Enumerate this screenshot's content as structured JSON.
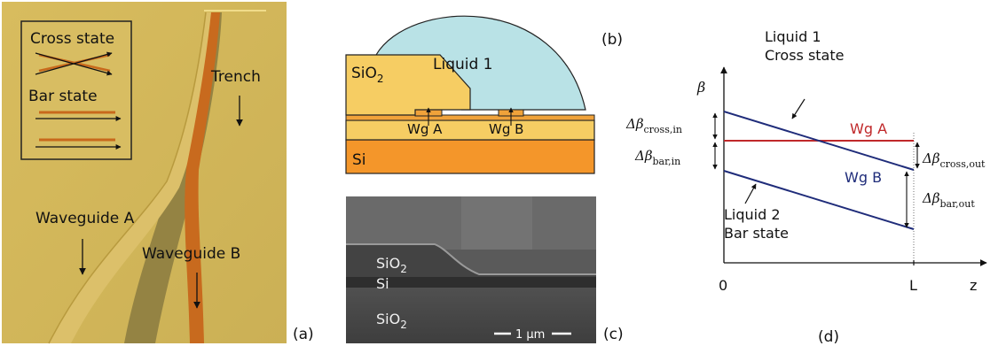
{
  "panel_a": {
    "label": "(a)",
    "inset": {
      "cross_label": "Cross state",
      "bar_label": "Bar state"
    },
    "trench_label": "Trench",
    "waveguide_a_label": "Waveguide A",
    "waveguide_b_label": "Waveguide B",
    "colors": {
      "background": "#d4b85a",
      "waveguide_a": "#cfae4e",
      "waveguide_b": "#c8691c",
      "trench": "#8c7a3a"
    }
  },
  "panel_b": {
    "label": "(b)",
    "liquid_label": "Liquid 1",
    "sio2_label": "SiO",
    "sio2_sub": "2",
    "wg_a_label": "Wg A",
    "wg_b_label": "Wg B",
    "si_label": "Si",
    "colors": {
      "liquid": "#b9e2e6",
      "sio2": "#f6cd63",
      "si": "#f4962a",
      "core": "#f0a23a"
    }
  },
  "panel_c": {
    "label": "(c)",
    "sio2_top_label": "SiO",
    "sio2_top_sub": "2",
    "si_label": "Si",
    "sio2_bottom_label": "SiO",
    "sio2_bottom_sub": "2",
    "scalebar_label": "1 μm"
  },
  "panel_d": {
    "label": "(d)",
    "y_axis_label": "β",
    "x_axis_label": "z",
    "x_tick_0": "0",
    "x_tick_L": "L",
    "liquid1_line1": "Liquid 1",
    "liquid1_line2": "Cross state",
    "liquid2_line1": "Liquid 2",
    "liquid2_line2": "Bar state",
    "wg_a_label": "Wg A",
    "wg_b_label": "Wg B",
    "delta_cross_in": {
      "base": "Δβ",
      "sub": "cross,in"
    },
    "delta_bar_in": {
      "base": "Δβ",
      "sub": "bar,in"
    },
    "delta_cross_out": {
      "base": "Δβ",
      "sub": "cross,out"
    },
    "delta_bar_out": {
      "base": "Δβ",
      "sub": "bar,out"
    },
    "colors": {
      "wg_a": "#c0282a",
      "wg_b": "#1f2c7a"
    }
  }
}
